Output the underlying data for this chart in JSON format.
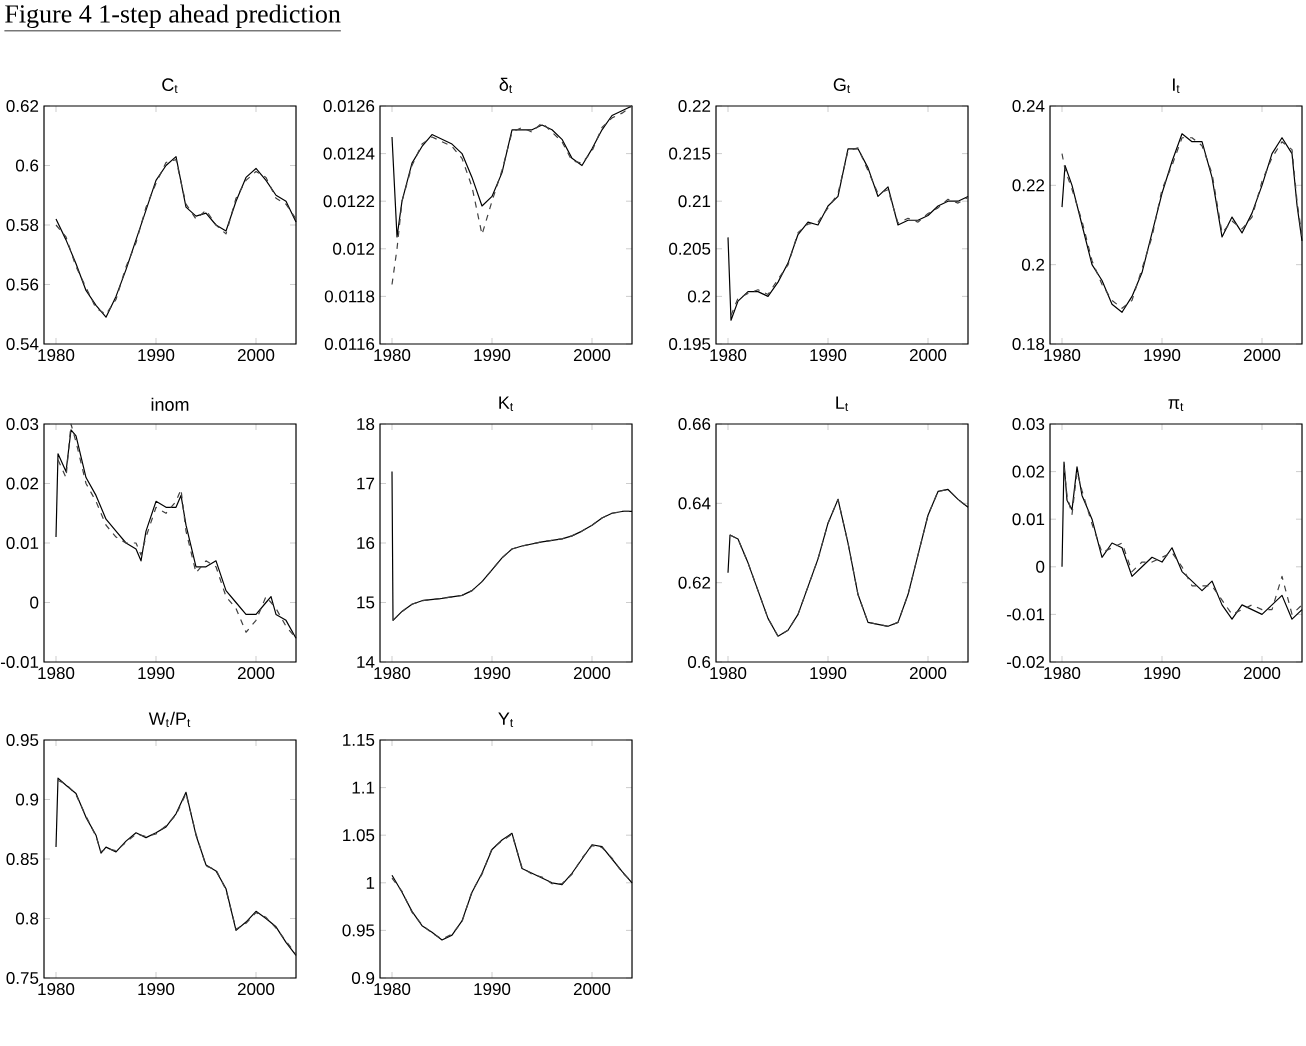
{
  "chart_data": [
    {
      "type": "line",
      "title": "C$_{t}$",
      "annotations": [
        "Figure 4 1-step ahead prediction"
      ],
      "xlim": [
        1978.8,
        2004
      ],
      "xticks": [
        1980,
        1990,
        2000
      ],
      "ylim": [
        0.54,
        0.62
      ],
      "yticks": [
        0.54,
        0.56,
        0.58,
        0.6,
        0.62
      ],
      "series": [
        {
          "color": "#000000",
          "line_style": "solid",
          "x": [
            1980,
            1981,
            1982,
            1983,
            1984,
            1985,
            1986,
            1987,
            1988,
            1989,
            1990,
            1991,
            1992,
            1993,
            1994,
            1995,
            1996,
            1997,
            1998,
            1999,
            2000,
            2001,
            2002,
            2003,
            2004
          ],
          "values": [
            0.582,
            0.575,
            0.567,
            0.558,
            0.553,
            0.549,
            0.556,
            0.565,
            0.575,
            0.585,
            0.595,
            0.6,
            0.603,
            0.586,
            0.583,
            0.584,
            0.58,
            0.578,
            0.588,
            0.596,
            0.599,
            0.595,
            0.59,
            0.588,
            0.581
          ]
        },
        {
          "color": "#404040",
          "line_style": "dashed",
          "x": [
            1980,
            1981,
            1982,
            1983,
            1984,
            1985,
            1986,
            1987,
            1988,
            1989,
            1990,
            1991,
            1992,
            1993,
            1994,
            1995,
            1996,
            1997,
            1998,
            1999,
            2000,
            2001,
            2002,
            2003,
            2004
          ],
          "values": [
            0.58,
            0.576,
            0.566,
            0.559,
            0.552,
            0.55,
            0.555,
            0.566,
            0.574,
            0.586,
            0.594,
            0.601,
            0.602,
            0.587,
            0.582,
            0.585,
            0.58,
            0.577,
            0.589,
            0.595,
            0.598,
            0.596,
            0.589,
            0.587,
            0.582
          ]
        }
      ]
    },
    {
      "type": "line",
      "title": "δ$_{t}$",
      "xlim": [
        1978.8,
        2004
      ],
      "xticks": [
        1980,
        1990,
        2000
      ],
      "ylim": [
        0.0116,
        0.0126
      ],
      "yticks": [
        0.0116,
        0.0118,
        0.012,
        0.0122,
        0.0124,
        0.0126
      ],
      "series": [
        {
          "color": "#000000",
          "line_style": "solid",
          "x": [
            1980,
            1980.5,
            1981,
            1982,
            1983,
            1984,
            1985,
            1986,
            1987,
            1988,
            1989,
            1990,
            1991,
            1992,
            1993,
            1994,
            1995,
            1996,
            1997,
            1998,
            1999,
            2000,
            2001,
            2002,
            2003,
            2004
          ],
          "values": [
            0.01247,
            0.01205,
            0.0122,
            0.01236,
            0.01243,
            0.01248,
            0.01246,
            0.01244,
            0.0124,
            0.0123,
            0.01218,
            0.01222,
            0.01232,
            0.0125,
            0.0125,
            0.0125,
            0.01252,
            0.0125,
            0.01246,
            0.01238,
            0.01235,
            0.01242,
            0.0125,
            0.01256,
            0.01258,
            0.0126
          ]
        },
        {
          "color": "#404040",
          "line_style": "dashed",
          "x": [
            1980,
            1980.5,
            1981,
            1982,
            1983,
            1984,
            1985,
            1986,
            1987,
            1988,
            1989,
            1990,
            1991,
            1992,
            1993,
            1994,
            1995,
            1996,
            1997,
            1998,
            1999,
            2000,
            2001,
            2002,
            2003,
            2004
          ],
          "values": [
            0.01185,
            0.012,
            0.0122,
            0.01235,
            0.01244,
            0.01247,
            0.01245,
            0.01243,
            0.01238,
            0.01226,
            0.01206,
            0.0122,
            0.01233,
            0.01249,
            0.01251,
            0.01249,
            0.01253,
            0.01249,
            0.01245,
            0.01237,
            0.01236,
            0.01241,
            0.01251,
            0.01255,
            0.01257,
            0.0126
          ]
        }
      ]
    },
    {
      "type": "line",
      "title": "G$_{t}$",
      "xlim": [
        1978.8,
        2004
      ],
      "xticks": [
        1980,
        1990,
        2000
      ],
      "ylim": [
        0.195,
        0.22
      ],
      "yticks": [
        0.195,
        0.2,
        0.205,
        0.21,
        0.215,
        0.22
      ],
      "series": [
        {
          "color": "#000000",
          "line_style": "solid",
          "x": [
            1980,
            1980.3,
            1981,
            1982,
            1983,
            1984,
            1985,
            1986,
            1987,
            1988,
            1989,
            1990,
            1991,
            1992,
            1993,
            1994,
            1995,
            1996,
            1997,
            1998,
            1999,
            2000,
            2001,
            2002,
            2003,
            2004
          ],
          "values": [
            0.2062,
            0.1975,
            0.1995,
            0.2005,
            0.2005,
            0.2,
            0.2015,
            0.2035,
            0.2065,
            0.2078,
            0.2075,
            0.2095,
            0.2105,
            0.2155,
            0.2155,
            0.2135,
            0.2105,
            0.2115,
            0.2075,
            0.208,
            0.208,
            0.2085,
            0.2095,
            0.21,
            0.21,
            0.2105
          ]
        },
        {
          "color": "#404040",
          "line_style": "dashed",
          "x": [
            1980.3,
            1981,
            1982,
            1983,
            1984,
            1985,
            1986,
            1987,
            1988,
            1989,
            1990,
            1991,
            1992,
            1993,
            1994,
            1995,
            1996,
            1997,
            1998,
            1999,
            2000,
            2001,
            2002,
            2003,
            2004
          ],
          "values": [
            0.198,
            0.1998,
            0.2003,
            0.2007,
            0.2002,
            0.2018,
            0.2033,
            0.2067,
            0.2076,
            0.2078,
            0.2093,
            0.2108,
            0.2153,
            0.2156,
            0.2132,
            0.2108,
            0.2112,
            0.2077,
            0.2082,
            0.2078,
            0.2087,
            0.2093,
            0.2102,
            0.2098,
            0.2104
          ]
        }
      ]
    },
    {
      "type": "line",
      "title": "I$_{t}$",
      "xlim": [
        1978.8,
        2004
      ],
      "xticks": [
        1980,
        1990,
        2000
      ],
      "ylim": [
        0.18,
        0.24
      ],
      "yticks": [
        0.18,
        0.2,
        0.22,
        0.24
      ],
      "series": [
        {
          "color": "#000000",
          "line_style": "solid",
          "x": [
            1980,
            1980.3,
            1981,
            1982,
            1983,
            1984,
            1985,
            1986,
            1987,
            1988,
            1989,
            1990,
            1991,
            1992,
            1993,
            1994,
            1995,
            1996,
            1997,
            1998,
            1999,
            2000,
            2001,
            2002,
            2003,
            2003.5,
            2004
          ],
          "values": [
            0.2145,
            0.225,
            0.22,
            0.21,
            0.2,
            0.196,
            0.19,
            0.188,
            0.192,
            0.198,
            0.208,
            0.218,
            0.226,
            0.233,
            0.231,
            0.231,
            0.222,
            0.207,
            0.212,
            0.208,
            0.213,
            0.22,
            0.228,
            0.232,
            0.228,
            0.215,
            0.206
          ]
        },
        {
          "color": "#404040",
          "line_style": "dashed",
          "x": [
            1980,
            1980.3,
            1981,
            1982,
            1983,
            1984,
            1985,
            1986,
            1987,
            1988,
            1989,
            1990,
            1991,
            1992,
            1993,
            1994,
            1995,
            1996,
            1997,
            1998,
            1999,
            2000,
            2001,
            2002,
            2003,
            2003.5,
            2004
          ],
          "values": [
            0.228,
            0.224,
            0.219,
            0.211,
            0.201,
            0.195,
            0.191,
            0.189,
            0.191,
            0.199,
            0.207,
            0.219,
            0.225,
            0.232,
            0.232,
            0.23,
            0.223,
            0.208,
            0.211,
            0.209,
            0.212,
            0.221,
            0.227,
            0.231,
            0.229,
            0.216,
            0.207
          ]
        }
      ]
    },
    {
      "type": "line",
      "title": "inom",
      "xlim": [
        1978.8,
        2004
      ],
      "xticks": [
        1980,
        1990,
        2000
      ],
      "ylim": [
        -0.01,
        0.03
      ],
      "yticks": [
        -0.01,
        0,
        0.01,
        0.02,
        0.03
      ],
      "series": [
        {
          "color": "#000000",
          "line_style": "solid",
          "x": [
            1980,
            1980.2,
            1981,
            1981.5,
            1982,
            1983,
            1984,
            1985,
            1986,
            1987,
            1988,
            1988.5,
            1989,
            1990,
            1991,
            1992,
            1992.5,
            1993,
            1994,
            1995,
            1996,
            1997,
            1998,
            1999,
            2000,
            2001,
            2001.5,
            2002,
            2003,
            2004
          ],
          "values": [
            0.011,
            0.025,
            0.022,
            0.029,
            0.028,
            0.021,
            0.018,
            0.014,
            0.012,
            0.01,
            0.009,
            0.007,
            0.012,
            0.017,
            0.016,
            0.016,
            0.018,
            0.013,
            0.006,
            0.006,
            0.007,
            0.002,
            0.0,
            -0.002,
            -0.002,
            0.0,
            0.001,
            -0.002,
            -0.003,
            -0.006
          ]
        },
        {
          "color": "#404040",
          "line_style": "dashed",
          "x": [
            1980.2,
            1981,
            1981.5,
            1982,
            1983,
            1984,
            1985,
            1986,
            1987,
            1988,
            1988.5,
            1989,
            1990,
            1991,
            1992,
            1992.5,
            1993,
            1994,
            1995,
            1996,
            1997,
            1998,
            1999,
            2000,
            2001,
            2001.5,
            2002,
            2003,
            2004
          ],
          "values": [
            0.024,
            0.021,
            0.03,
            0.027,
            0.02,
            0.017,
            0.013,
            0.011,
            0.01,
            0.01,
            0.008,
            0.011,
            0.016,
            0.015,
            0.017,
            0.019,
            0.012,
            0.005,
            0.007,
            0.006,
            0.001,
            -0.001,
            -0.005,
            -0.003,
            0.001,
            0.0,
            -0.001,
            -0.004,
            -0.006
          ]
        }
      ]
    },
    {
      "type": "line",
      "title": "K$_{t}$",
      "xlim": [
        1978.8,
        2004
      ],
      "xticks": [
        1980,
        1990,
        2000
      ],
      "ylim": [
        14,
        18
      ],
      "yticks": [
        14,
        15,
        16,
        17,
        18
      ],
      "series": [
        {
          "color": "#000000",
          "line_style": "solid",
          "x": [
            1980,
            1980.1,
            1981,
            1982,
            1983,
            1985,
            1987,
            1988,
            1989,
            1990,
            1991,
            1992,
            1993,
            1995,
            1997,
            1998,
            1999,
            2000,
            2001,
            2002,
            2003,
            2004
          ],
          "values": [
            17.2,
            14.7,
            14.85,
            14.97,
            15.03,
            15.07,
            15.12,
            15.2,
            15.35,
            15.55,
            15.75,
            15.9,
            15.95,
            16.02,
            16.07,
            16.12,
            16.2,
            16.3,
            16.42,
            16.5,
            16.53,
            16.53
          ]
        },
        {
          "color": "#404040",
          "line_style": "dashed",
          "x": [
            1980.1,
            1981,
            1982,
            1983,
            1985,
            1987,
            1988,
            1989,
            1990,
            1991,
            1992,
            1993,
            1995,
            1997,
            1998,
            1999,
            2000,
            2001,
            2002,
            2003,
            2004
          ],
          "values": [
            14.7,
            14.85,
            14.97,
            15.03,
            15.07,
            15.12,
            15.2,
            15.35,
            15.55,
            15.75,
            15.9,
            15.95,
            16.02,
            16.07,
            16.12,
            16.2,
            16.3,
            16.42,
            16.5,
            16.53,
            16.53
          ]
        }
      ]
    },
    {
      "type": "line",
      "title": "L$_{t}$",
      "xlim": [
        1978.8,
        2004
      ],
      "xticks": [
        1980,
        1990,
        2000
      ],
      "ylim": [
        0.6,
        0.66
      ],
      "yticks": [
        0.6,
        0.62,
        0.64,
        0.66
      ],
      "series": [
        {
          "color": "#000000",
          "line_style": "solid",
          "x": [
            1980,
            1980.2,
            1981,
            1982,
            1983,
            1984,
            1985,
            1986,
            1987,
            1988,
            1989,
            1990,
            1991,
            1992,
            1993,
            1994,
            1995,
            1996,
            1997,
            1998,
            1999,
            2000,
            2001,
            2002,
            2003,
            2004
          ],
          "values": [
            0.6225,
            0.632,
            0.631,
            0.625,
            0.618,
            0.611,
            0.6065,
            0.608,
            0.612,
            0.619,
            0.626,
            0.635,
            0.641,
            0.63,
            0.617,
            0.61,
            0.6095,
            0.609,
            0.61,
            0.617,
            0.627,
            0.637,
            0.643,
            0.6435,
            0.641,
            0.639
          ]
        },
        {
          "color": "#404040",
          "line_style": "dashed",
          "x": [
            1980.2,
            1981,
            1982,
            1983,
            1984,
            1985,
            1986,
            1987,
            1988,
            1989,
            1990,
            1991,
            1992,
            1993,
            1994,
            1995,
            1996,
            1997,
            1998,
            1999,
            2000,
            2001,
            2002,
            2003,
            2004
          ],
          "values": [
            0.632,
            0.631,
            0.625,
            0.618,
            0.611,
            0.6065,
            0.608,
            0.612,
            0.619,
            0.626,
            0.635,
            0.641,
            0.63,
            0.617,
            0.61,
            0.6095,
            0.609,
            0.61,
            0.617,
            0.627,
            0.637,
            0.643,
            0.6435,
            0.641,
            0.639
          ]
        }
      ]
    },
    {
      "type": "line",
      "title": "π$_{t}$",
      "xlim": [
        1978.8,
        2004
      ],
      "xticks": [
        1980,
        1990,
        2000
      ],
      "ylim": [
        -0.02,
        0.03
      ],
      "yticks": [
        -0.02,
        -0.01,
        0,
        0.01,
        0.02,
        0.03
      ],
      "series": [
        {
          "color": "#000000",
          "line_style": "solid",
          "x": [
            1980,
            1980.2,
            1980.5,
            1981,
            1981.5,
            1982,
            1983,
            1984,
            1985,
            1986,
            1987,
            1988,
            1989,
            1990,
            1991,
            1992,
            1993,
            1994,
            1995,
            1996,
            1997,
            1998,
            1999,
            2000,
            2001,
            2002,
            2003,
            2004
          ],
          "values": [
            0.0,
            0.022,
            0.014,
            0.012,
            0.021,
            0.015,
            0.01,
            0.002,
            0.005,
            0.004,
            -0.002,
            0.0,
            0.002,
            0.001,
            0.004,
            -0.001,
            -0.003,
            -0.005,
            -0.003,
            -0.008,
            -0.011,
            -0.008,
            -0.009,
            -0.01,
            -0.008,
            -0.006,
            -0.011,
            -0.009
          ]
        },
        {
          "color": "#404040",
          "line_style": "dashed",
          "x": [
            1980.2,
            1980.5,
            1981,
            1981.5,
            1982,
            1983,
            1984,
            1985,
            1986,
            1987,
            1988,
            1989,
            1990,
            1991,
            1992,
            1993,
            1994,
            1995,
            1996,
            1997,
            1998,
            1999,
            2000,
            2001,
            2002,
            2003,
            2004
          ],
          "values": [
            0.021,
            0.015,
            0.011,
            0.02,
            0.016,
            0.009,
            0.003,
            0.004,
            0.005,
            -0.001,
            0.001,
            0.001,
            0.002,
            0.003,
            0.0,
            -0.004,
            -0.004,
            -0.004,
            -0.007,
            -0.01,
            -0.009,
            -0.008,
            -0.009,
            -0.009,
            -0.002,
            -0.01,
            -0.008
          ]
        }
      ]
    },
    {
      "type": "line",
      "title": "W$_{t}$/P$_{t}$",
      "xlim": [
        1978.8,
        2004
      ],
      "xticks": [
        1980,
        1990,
        2000
      ],
      "ylim": [
        0.75,
        0.95
      ],
      "yticks": [
        0.75,
        0.8,
        0.85,
        0.9,
        0.95
      ],
      "series": [
        {
          "color": "#000000",
          "line_style": "solid",
          "x": [
            1980,
            1980.2,
            1981,
            1982,
            1983,
            1984,
            1984.5,
            1985,
            1986,
            1987,
            1988,
            1989,
            1990,
            1991,
            1992,
            1993,
            1994,
            1995,
            1996,
            1997,
            1998,
            1999,
            2000,
            2001,
            2002,
            2003,
            2004
          ],
          "values": [
            0.86,
            0.918,
            0.912,
            0.905,
            0.885,
            0.87,
            0.855,
            0.86,
            0.856,
            0.865,
            0.872,
            0.868,
            0.872,
            0.877,
            0.888,
            0.906,
            0.87,
            0.845,
            0.84,
            0.825,
            0.79,
            0.797,
            0.806,
            0.8,
            0.793,
            0.78,
            0.769
          ]
        },
        {
          "color": "#404040",
          "line_style": "dashed",
          "x": [
            1980.2,
            1981,
            1982,
            1983,
            1984,
            1984.5,
            1985,
            1986,
            1987,
            1988,
            1989,
            1990,
            1991,
            1992,
            1993,
            1994,
            1995,
            1996,
            1997,
            1998,
            1999,
            2000,
            2001,
            2002,
            2003,
            2004
          ],
          "values": [
            0.916,
            0.913,
            0.904,
            0.886,
            0.869,
            0.856,
            0.859,
            0.857,
            0.864,
            0.871,
            0.869,
            0.871,
            0.878,
            0.887,
            0.905,
            0.871,
            0.844,
            0.841,
            0.824,
            0.791,
            0.796,
            0.805,
            0.801,
            0.792,
            0.781,
            0.77
          ]
        }
      ]
    },
    {
      "type": "line",
      "title": "Y$_{t}$",
      "xlim": [
        1978.8,
        2004
      ],
      "xticks": [
        1980,
        1990,
        2000
      ],
      "ylim": [
        0.9,
        1.15
      ],
      "yticks": [
        0.9,
        0.95,
        1,
        1.05,
        1.1,
        1.15
      ],
      "series": [
        {
          "color": "#000000",
          "line_style": "solid",
          "x": [
            1980,
            1981,
            1982,
            1983,
            1984,
            1985,
            1986,
            1987,
            1988,
            1989,
            1990,
            1991,
            1992,
            1993,
            1994,
            1995,
            1996,
            1997,
            1998,
            1999,
            2000,
            2001,
            2002,
            2003,
            2004
          ],
          "values": [
            1.008,
            0.99,
            0.97,
            0.955,
            0.948,
            0.94,
            0.945,
            0.96,
            0.99,
            1.01,
            1.035,
            1.045,
            1.052,
            1.015,
            1.01,
            1.005,
            1.0,
            0.998,
            1.01,
            1.025,
            1.04,
            1.038,
            1.025,
            1.012,
            1.0
          ]
        },
        {
          "color": "#404040",
          "line_style": "dashed",
          "x": [
            1980,
            1981,
            1982,
            1983,
            1984,
            1985,
            1986,
            1987,
            1988,
            1989,
            1990,
            1991,
            1992,
            1993,
            1994,
            1995,
            1996,
            1997,
            1998,
            1999,
            2000,
            2001,
            2002,
            2003,
            2004
          ],
          "values": [
            1.005,
            0.991,
            0.969,
            0.956,
            0.947,
            0.941,
            0.946,
            0.959,
            0.991,
            1.009,
            1.036,
            1.044,
            1.051,
            1.016,
            1.009,
            1.006,
            0.999,
            0.999,
            1.009,
            1.026,
            1.039,
            1.037,
            1.026,
            1.011,
            1.001
          ]
        }
      ]
    }
  ]
}
